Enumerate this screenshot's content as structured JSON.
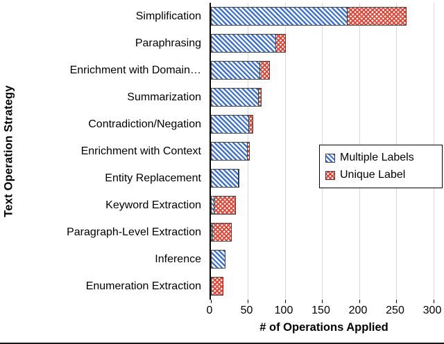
{
  "chart_data": {
    "type": "bar",
    "orientation": "horizontal",
    "stacked": true,
    "title": "",
    "xlabel": "# of Operations Applied",
    "ylabel": "Text Operation Strategy",
    "categories": [
      "Simplification",
      "Paraphrasing",
      "Enrichment with Domain…",
      "Summarization",
      "Contradiction/Negation",
      "Enrichment with Context",
      "Entity Replacement",
      "Keyword Extraction",
      "Paragraph-Level Extraction",
      "Inference",
      "Enumeration Extraction"
    ],
    "series": [
      {
        "name": "Multiple Labels",
        "pattern": "blue-diagonal-hatch",
        "color": "#3e72d8",
        "values": [
          185,
          88,
          67,
          65,
          52,
          50,
          38,
          5,
          3,
          20,
          0
        ]
      },
      {
        "name": "Unique Label",
        "pattern": "red-crosshatch",
        "color": "#e63e2f",
        "values": [
          80,
          14,
          14,
          5,
          6,
          4,
          2,
          30,
          26,
          0,
          17
        ]
      }
    ],
    "totals": [
      265,
      102,
      81,
      70,
      58,
      54,
      40,
      35,
      29,
      20,
      17
    ],
    "xlim": [
      0,
      306
    ],
    "xticks": [
      0,
      50,
      100,
      150,
      200,
      250,
      300
    ],
    "grid": true,
    "gridline_color": "#d9d9d9",
    "axis_color": "#000000",
    "bar_border_color": "#3f3f3f",
    "legend_position": "middle-right",
    "legend_border_color": "#000000"
  }
}
